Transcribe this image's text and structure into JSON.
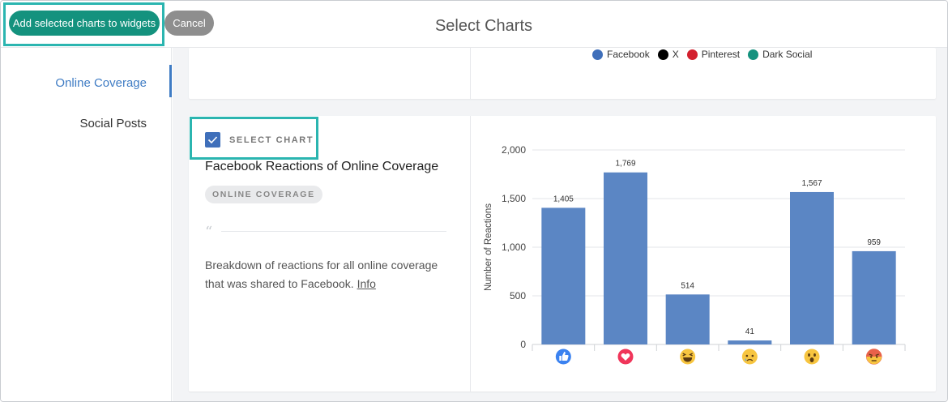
{
  "header": {
    "add_button": "Add selected charts to widgets",
    "cancel_button": "Cancel",
    "title": "Select Charts"
  },
  "sidebar": {
    "items": [
      {
        "label": "Online Coverage",
        "active": true
      },
      {
        "label": "Social Posts",
        "active": false
      }
    ]
  },
  "top_card": {
    "legend": [
      {
        "label": "Facebook",
        "color": "#3f6fba"
      },
      {
        "label": "X",
        "color": "#000000"
      },
      {
        "label": "Pinterest",
        "color": "#d3202e"
      },
      {
        "label": "Dark Social",
        "color": "#14927e"
      }
    ]
  },
  "chart_card": {
    "select_label": "SELECT CHART",
    "selected": true,
    "title": "Facebook Reactions of Online Coverage",
    "tag": "ONLINE COVERAGE",
    "quote_mark": "“",
    "description": "Breakdown of reactions for all online coverage that was shared to Facebook.",
    "info_link": "Info"
  },
  "chart_data": {
    "type": "bar",
    "categories": [
      "like-icon",
      "love-icon",
      "haha-icon",
      "sad-icon",
      "wow-icon",
      "angry-icon"
    ],
    "values": [
      1405,
      1769,
      514,
      41,
      1567,
      959
    ],
    "value_labels": [
      "1,405",
      "1,769",
      "514",
      "41",
      "1,567",
      "959"
    ],
    "ylabel": "Number of Reactions",
    "ylim": [
      0,
      2000
    ],
    "yticks": [
      "0",
      "500",
      "1,000",
      "1,500",
      "2,000"
    ],
    "ytick_values": [
      0,
      500,
      1000,
      1500,
      2000
    ],
    "bar_color": "#5b86c4",
    "grid": true
  }
}
